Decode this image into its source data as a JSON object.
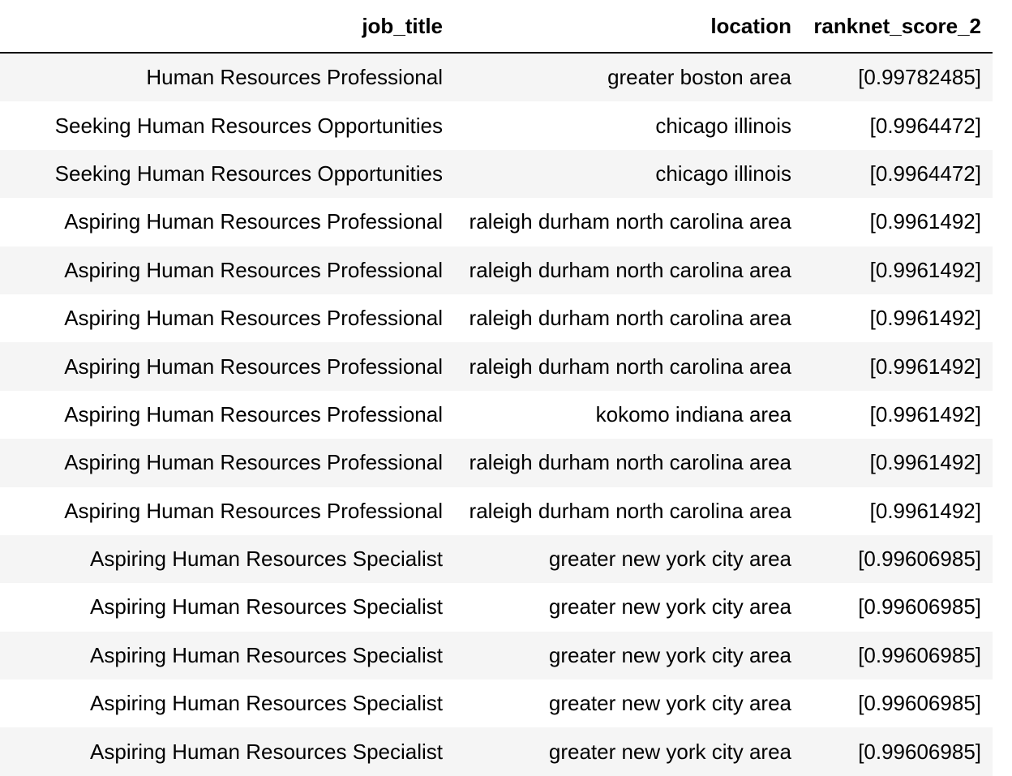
{
  "table": {
    "columns": [
      "job_title",
      "location",
      "ranknet_score_2"
    ],
    "rows": [
      [
        "Human Resources Professional",
        "greater boston area",
        "[0.99782485]"
      ],
      [
        "Seeking Human Resources Opportunities",
        "chicago illinois",
        "[0.9964472]"
      ],
      [
        "Seeking Human Resources Opportunities",
        "chicago illinois",
        "[0.9964472]"
      ],
      [
        "Aspiring Human Resources Professional",
        "raleigh durham north carolina area",
        "[0.9961492]"
      ],
      [
        "Aspiring Human Resources Professional",
        "raleigh durham north carolina area",
        "[0.9961492]"
      ],
      [
        "Aspiring Human Resources Professional",
        "raleigh durham north carolina area",
        "[0.9961492]"
      ],
      [
        "Aspiring Human Resources Professional",
        "raleigh durham north carolina area",
        "[0.9961492]"
      ],
      [
        "Aspiring Human Resources Professional",
        "kokomo indiana area",
        "[0.9961492]"
      ],
      [
        "Aspiring Human Resources Professional",
        "raleigh durham north carolina area",
        "[0.9961492]"
      ],
      [
        "Aspiring Human Resources Professional",
        "raleigh durham north carolina area",
        "[0.9961492]"
      ],
      [
        "Aspiring Human Resources Specialist",
        "greater new york city area",
        "[0.99606985]"
      ],
      [
        "Aspiring Human Resources Specialist",
        "greater new york city area",
        "[0.99606985]"
      ],
      [
        "Aspiring Human Resources Specialist",
        "greater new york city area",
        "[0.99606985]"
      ],
      [
        "Aspiring Human Resources Specialist",
        "greater new york city area",
        "[0.99606985]"
      ],
      [
        "Aspiring Human Resources Specialist",
        "greater new york city area",
        "[0.99606985]"
      ]
    ]
  }
}
